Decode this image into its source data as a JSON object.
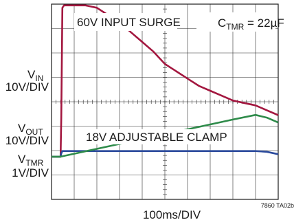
{
  "chart_data": {
    "type": "line",
    "title": "",
    "xlabel": "100ms/DIV",
    "figure_id": "7860 TA02b",
    "x_divisions": 10,
    "y_divisions": 8,
    "grid": true,
    "annotations": {
      "surge": "60V INPUT SURGE",
      "timer_cap_prefix": "C",
      "timer_cap_sub": "TMR",
      "timer_cap_value": " = 22µF",
      "clamp": "18V ADJUSTABLE CLAMP"
    },
    "channel_labels": [
      {
        "name": "V",
        "sub": "IN",
        "scale": "10V/DIV"
      },
      {
        "name": "V",
        "sub": "OUT",
        "scale": "10V/DIV"
      },
      {
        "name": "V",
        "sub": "TMR",
        "scale": "1V/DIV"
      }
    ],
    "series": [
      {
        "name": "VIN",
        "color": "#a3173f",
        "scale_v_per_div": 10,
        "ground_div": 1.75,
        "x": [
          0,
          0.4,
          0.43,
          0.48,
          0.55,
          1.0,
          1.5,
          2.0,
          2.5,
          3.0,
          3.5,
          4.0,
          4.5,
          5.0,
          5.5,
          6.0,
          6.5,
          7.0,
          7.5,
          8.0,
          8.5,
          9.0,
          9.5,
          10.0
        ],
        "values": [
          0,
          0,
          16,
          61,
          62,
          62,
          62,
          61,
          58,
          55,
          51,
          47,
          43,
          38,
          35,
          32,
          29,
          27,
          25,
          23,
          22,
          21,
          19,
          17
        ]
      },
      {
        "name": "VOUT",
        "color": "#2b4a9c",
        "scale_v_per_div": 10,
        "ground_div": 1.75,
        "x": [
          0,
          0.4,
          0.43,
          0.48,
          0.6,
          1.0,
          2.0,
          3.0,
          4.0,
          5.0,
          6.0,
          7.0,
          8.0,
          9.0,
          9.5,
          10.0
        ],
        "values": [
          0,
          0,
          1.3,
          2.3,
          2.3,
          2.3,
          2.3,
          2.3,
          2.3,
          2.3,
          2.3,
          2.3,
          2.3,
          2.3,
          2.0,
          1.0
        ]
      },
      {
        "name": "VTMR",
        "color": "#2e8b4a",
        "scale_v_per_div": 1,
        "ground_div": 1.75,
        "x": [
          0,
          0.4,
          1.0,
          2.0,
          3.0,
          4.0,
          5.0,
          6.0,
          7.0,
          8.0,
          9.0,
          9.5,
          10.0
        ],
        "values": [
          0,
          0,
          0.12,
          0.32,
          0.52,
          0.72,
          0.92,
          1.12,
          1.32,
          1.52,
          1.71,
          1.6,
          1.4
        ]
      }
    ]
  }
}
